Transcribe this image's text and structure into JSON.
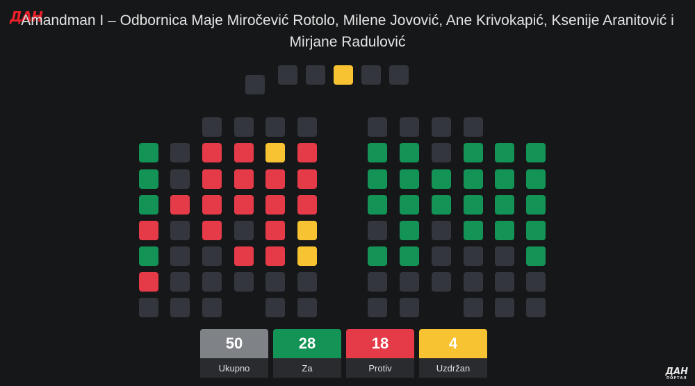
{
  "branding": {
    "logo_text": "ДАН",
    "logo_subtext": "ПОРТАЛ"
  },
  "header": {
    "title_line1": "Amandman I – Odbornica Maje Miročević Rotolo, Milene Jovović, Ane Krivokapić, Ksenije Aranitović i",
    "title_line2": "Mirjane Radulović"
  },
  "colors": {
    "za": "#139355",
    "protiv": "#e53a48",
    "uzdrzan": "#f7c332",
    "empty": "#34363d",
    "ukupno": "#7f8388"
  },
  "summary": [
    {
      "key": "ukupno",
      "value": "50",
      "label": "Ukupno"
    },
    {
      "key": "za",
      "value": "28",
      "label": "Za"
    },
    {
      "key": "protiv",
      "value": "18",
      "label": "Protiv"
    },
    {
      "key": "uzdrzan",
      "value": "4",
      "label": "Uzdržan"
    }
  ],
  "seating": {
    "presidium": [
      "e",
      "e",
      "y",
      "e",
      "e"
    ],
    "speaker": "e",
    "left_top_row": [
      "e",
      "e",
      "e",
      "e"
    ],
    "left_rows": [
      [
        "g",
        "e",
        "r",
        "r",
        "y",
        "r"
      ],
      [
        "g",
        "e",
        "r",
        "r",
        "r",
        "r"
      ],
      [
        "g",
        "r",
        "r",
        "r",
        "r",
        "r"
      ],
      [
        "r",
        "e",
        "r",
        "e",
        "r",
        "y"
      ],
      [
        "g",
        "e",
        "e",
        "r",
        "r",
        "y"
      ],
      [
        "r",
        "e",
        "e",
        "e",
        "e",
        "e"
      ],
      [
        "e",
        "e",
        "e",
        "-",
        "e",
        "e"
      ]
    ],
    "right_top_row": [
      "e",
      "e",
      "e",
      "e"
    ],
    "right_rows": [
      [
        "g",
        "g",
        "e",
        "g",
        "g",
        "g"
      ],
      [
        "g",
        "g",
        "g",
        "g",
        "g",
        "g"
      ],
      [
        "g",
        "g",
        "g",
        "g",
        "g",
        "g"
      ],
      [
        "e",
        "g",
        "e",
        "g",
        "g",
        "g"
      ],
      [
        "g",
        "g",
        "e",
        "e",
        "e",
        "g"
      ],
      [
        "e",
        "e",
        "e",
        "e",
        "e",
        "e"
      ],
      [
        "e",
        "e",
        "-",
        "e",
        "e",
        "e"
      ]
    ]
  }
}
